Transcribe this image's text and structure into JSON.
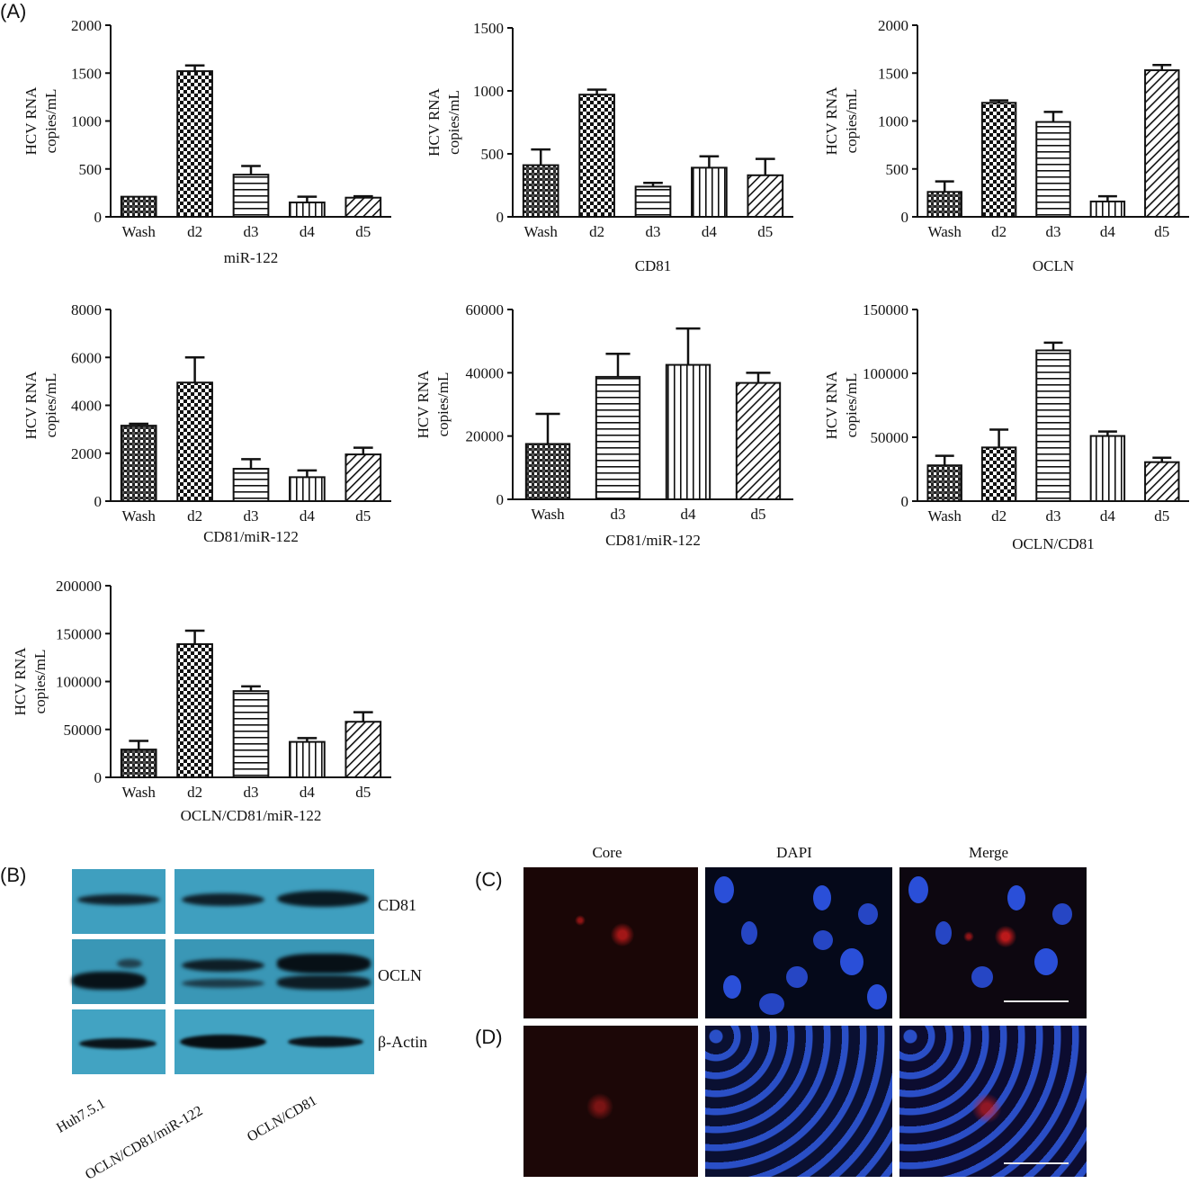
{
  "panels": {
    "a": "(A)",
    "b": "(B)",
    "c": "(C)",
    "d": "(D)"
  },
  "colors": {
    "bar_stroke": "#111111",
    "blot_bg": "#3f9fbf",
    "blot_band": "#0d1b24",
    "micro_dark": "#1a0606",
    "dapi_blue": "#2a4fd8",
    "core_red": "#e02020"
  },
  "chart_data": [
    {
      "type": "bar",
      "title": "miR-122",
      "ylabel": [
        "HCV RNA",
        "copies/mL"
      ],
      "categories": [
        "Wash",
        "d2",
        "d3",
        "d4",
        "d5"
      ],
      "patterns": [
        "dense",
        "checker",
        "hlines",
        "vlines",
        "diag"
      ],
      "values": [
        210,
        1520,
        440,
        150,
        200
      ],
      "errors": [
        0,
        60,
        90,
        60,
        15
      ],
      "ylim": [
        0,
        2000
      ],
      "yticks": [
        0,
        500,
        1000,
        1500,
        2000
      ]
    },
    {
      "type": "bar",
      "title": "CD81",
      "ylabel": [
        "HCV RNA",
        "copies/mL"
      ],
      "categories": [
        "Wash",
        "d2",
        "d3",
        "d4",
        "d5"
      ],
      "patterns": [
        "dense",
        "checker",
        "hlines",
        "vlines",
        "diag"
      ],
      "values": [
        410,
        970,
        240,
        390,
        330
      ],
      "errors": [
        125,
        40,
        30,
        90,
        130
      ],
      "ylim": [
        0,
        1500
      ],
      "yticks": [
        0,
        500,
        1000,
        1500
      ]
    },
    {
      "type": "bar",
      "title": "OCLN",
      "ylabel": [
        "HCV RNA",
        "copies/mL"
      ],
      "categories": [
        "Wash",
        "d2",
        "d3",
        "d4",
        "d5"
      ],
      "patterns": [
        "dense",
        "checker",
        "hlines",
        "vlines",
        "diag"
      ],
      "values": [
        260,
        1190,
        990,
        160,
        1530
      ],
      "errors": [
        110,
        25,
        105,
        55,
        55
      ],
      "ylim": [
        0,
        2000
      ],
      "yticks": [
        0,
        500,
        1000,
        1500,
        2000
      ]
    },
    {
      "type": "bar",
      "title": "CD81/miR-122",
      "ylabel": [
        "HCV RNA",
        "copies/mL"
      ],
      "categories": [
        "Wash",
        "d2",
        "d3",
        "d4",
        "d5"
      ],
      "patterns": [
        "dense",
        "checker",
        "hlines",
        "vlines",
        "diag"
      ],
      "values": [
        3150,
        4950,
        1350,
        1000,
        1950
      ],
      "errors": [
        80,
        1050,
        400,
        280,
        280
      ],
      "ylim": [
        0,
        8000
      ],
      "yticks": [
        0,
        2000,
        4000,
        6000,
        8000
      ]
    },
    {
      "type": "bar",
      "title": "CD81/miR-122",
      "ylabel": [
        "HCV RNA",
        "copies/mL"
      ],
      "categories": [
        "Wash",
        "d3",
        "d4",
        "d5"
      ],
      "patterns": [
        "dense",
        "hlines",
        "vlines",
        "diag"
      ],
      "values": [
        17500,
        38700,
        42500,
        36800
      ],
      "errors": [
        9500,
        7300,
        11500,
        3200
      ],
      "ylim": [
        0,
        60000
      ],
      "yticks": [
        0,
        20000,
        40000,
        60000
      ]
    },
    {
      "type": "bar",
      "title": "OCLN/CD81",
      "ylabel": [
        "HCV RNA",
        "copies/mL"
      ],
      "categories": [
        "Wash",
        "d2",
        "d3",
        "d4",
        "d5"
      ],
      "patterns": [
        "dense",
        "checker",
        "hlines",
        "vlines",
        "diag"
      ],
      "values": [
        28000,
        42000,
        118000,
        51000,
        30500
      ],
      "errors": [
        7500,
        14000,
        6000,
        3500,
        3500
      ],
      "ylim": [
        0,
        150000
      ],
      "yticks": [
        0,
        50000,
        100000,
        150000
      ]
    },
    {
      "type": "bar",
      "title": "OCLN/CD81/miR-122",
      "ylabel": [
        "HCV RNA",
        "copies/mL"
      ],
      "categories": [
        "Wash",
        "d2",
        "d3",
        "d4",
        "d5"
      ],
      "patterns": [
        "dense",
        "checker",
        "hlines",
        "vlines",
        "diag"
      ],
      "values": [
        29000,
        139000,
        90000,
        37000,
        58000
      ],
      "errors": [
        9000,
        14000,
        5000,
        4000,
        10000
      ],
      "ylim": [
        0,
        200000
      ],
      "yticks": [
        0,
        50000,
        100000,
        150000,
        200000
      ]
    }
  ],
  "blot": {
    "rows": [
      "CD81",
      "OCLN",
      "β-Actin"
    ],
    "lanes": [
      "Huh7.5.1",
      "OCLN/CD81/miR-122",
      "OCLN/CD81"
    ]
  },
  "microscopy": {
    "columns": [
      "Core",
      "DAPI",
      "Merge"
    ]
  }
}
